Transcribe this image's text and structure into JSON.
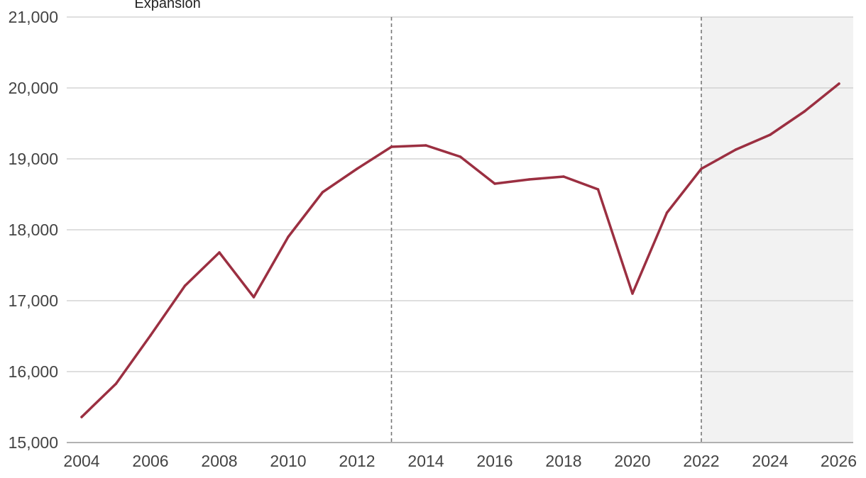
{
  "chart_data": {
    "type": "line",
    "title": "",
    "xlabel": "",
    "ylabel": "",
    "x": [
      2004,
      2005,
      2006,
      2007,
      2008,
      2009,
      2010,
      2011,
      2012,
      2013,
      2014,
      2015,
      2016,
      2017,
      2018,
      2019,
      2020,
      2021,
      2022,
      2023,
      2024,
      2025,
      2026
    ],
    "series": [
      {
        "color": "#9b2f41",
        "values": [
          15360,
          15830,
          16510,
          17210,
          17680,
          17050,
          17900,
          18530,
          18860,
          19170,
          19190,
          19030,
          18650,
          18710,
          18750,
          18570,
          17100,
          18240,
          18860,
          19130,
          19340,
          19670,
          20060
        ]
      }
    ],
    "xlim": [
      2004,
      2026
    ],
    "ylim": [
      15000,
      21000
    ],
    "x_ticks": [
      "2004",
      "2006",
      "2008",
      "2010",
      "2012",
      "2014",
      "2016",
      "2018",
      "2020",
      "2022",
      "2024",
      "2026"
    ],
    "y_ticks": [
      "15,000",
      "16,000",
      "17,000",
      "18,000",
      "19,000",
      "20,000",
      "21,000"
    ],
    "x_tick_values": [
      2004,
      2006,
      2008,
      2010,
      2012,
      2014,
      2016,
      2018,
      2020,
      2022,
      2024,
      2026
    ],
    "y_tick_values": [
      15000,
      16000,
      17000,
      18000,
      19000,
      20000,
      21000
    ],
    "vertical_markers": [
      2013,
      2022
    ],
    "shaded_region": {
      "from": 2022,
      "to": 2026,
      "color": "#f2f2f2"
    },
    "annotations": [
      {
        "text": "Expansión",
        "x": 2006.4,
        "y": 21000
      }
    ],
    "grid": true,
    "gridline_color": "#cccccc",
    "marker_color": "#777777",
    "legend": "none"
  }
}
